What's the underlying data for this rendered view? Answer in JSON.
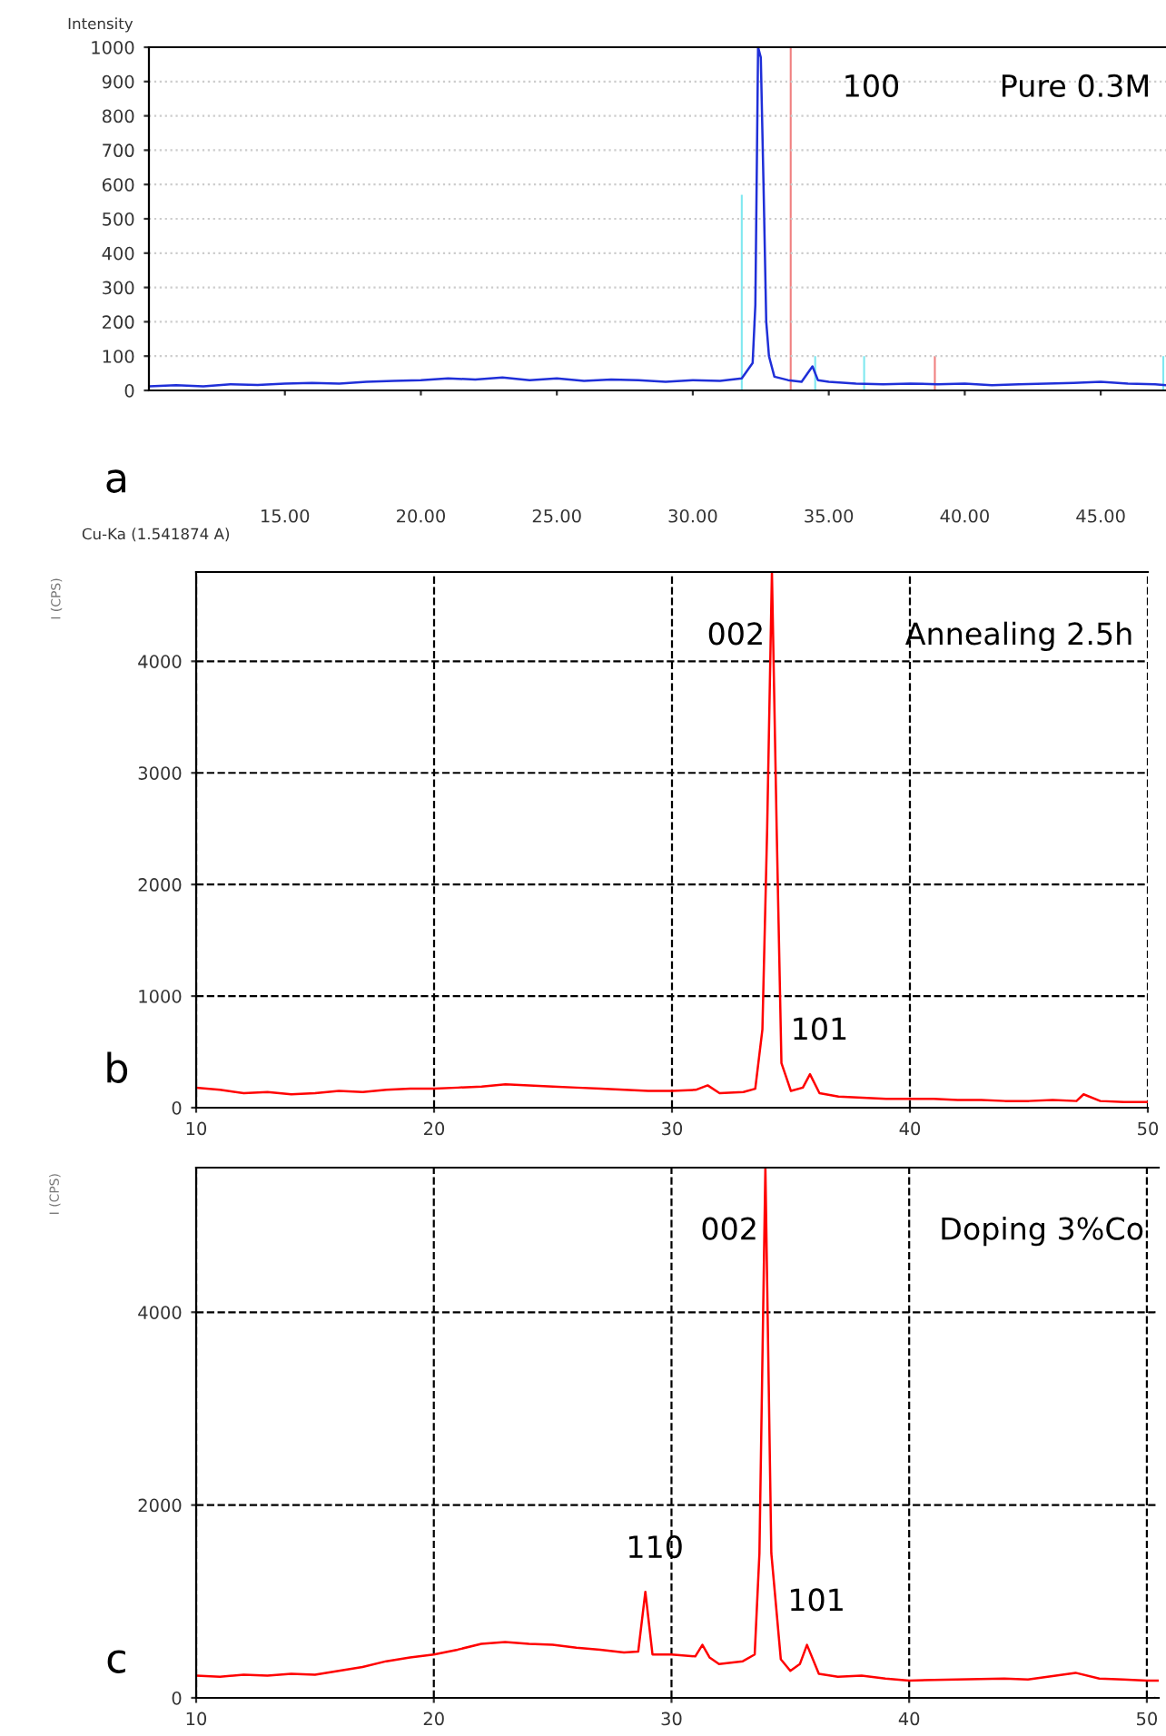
{
  "chart_data": [
    {
      "type": "line",
      "ylabel": "Intensity",
      "xlabel": "Cu-Ka (1.541874 A)",
      "annotations": [
        "Pure 0.3M",
        "a",
        {
          "text": "100",
          "x": 32.5,
          "y": 1000
        }
      ],
      "xlim": [
        10,
        47.4
      ],
      "ylim": [
        0,
        1000
      ],
      "xticks": [
        {
          "value": 15,
          "label": "15.00"
        },
        {
          "value": 20,
          "label": "20.00"
        },
        {
          "value": 25,
          "label": "25.00"
        },
        {
          "value": 30,
          "label": "30.00"
        },
        {
          "value": 35,
          "label": "35.00"
        },
        {
          "value": 40,
          "label": "40.00"
        },
        {
          "value": 45,
          "label": "45.00"
        }
      ],
      "yticks": [
        0,
        100,
        200,
        300,
        400,
        500,
        600,
        700,
        800,
        900,
        1000
      ],
      "grid": "y",
      "series": [
        {
          "color": "#1f2fd8",
          "x": [
            10,
            11,
            12,
            13,
            14,
            15,
            16,
            17,
            18,
            19,
            20,
            21,
            22,
            23,
            24,
            25,
            26,
            27,
            28,
            29,
            30,
            31,
            31.8,
            32.2,
            32.3,
            32.4,
            32.5,
            32.6,
            32.7,
            32.8,
            33.0,
            33.5,
            34.0,
            34.4,
            34.6,
            35,
            36,
            37,
            38,
            39,
            40,
            41,
            42,
            43,
            44,
            45,
            46,
            47,
            47.4
          ],
          "values": [
            12,
            15,
            12,
            18,
            16,
            20,
            22,
            20,
            25,
            28,
            30,
            35,
            32,
            38,
            30,
            35,
            28,
            32,
            30,
            25,
            30,
            28,
            35,
            80,
            250,
            1000,
            970,
            600,
            200,
            100,
            40,
            30,
            25,
            70,
            30,
            25,
            20,
            18,
            20,
            18,
            20,
            15,
            18,
            20,
            22,
            25,
            20,
            18,
            15
          ]
        },
        {
          "type": "bar",
          "x": [
            31.8,
            33.6,
            34.5,
            36.3,
            38.9,
            47.3
          ],
          "values": [
            570,
            1000,
            100,
            100,
            100,
            100
          ],
          "colors": [
            "#7fe8f0",
            "#f08080",
            "#7fe8f0",
            "#7fe8f0",
            "#f08080",
            "#7fe8f0"
          ]
        }
      ]
    },
    {
      "type": "line",
      "ylabel": "I (CPS)",
      "annotations": [
        "Annealing 2.5h",
        "b",
        {
          "text": "002",
          "x": 34.2,
          "y": 4800
        },
        {
          "text": "101",
          "x": 35.8,
          "y": 300
        }
      ],
      "xlim": [
        10,
        50
      ],
      "ylim": [
        0,
        4800
      ],
      "xticks": [
        10,
        20,
        30,
        40,
        50
      ],
      "yticks": [
        0,
        1000,
        2000,
        3000,
        4000
      ],
      "grid": true,
      "series": [
        {
          "color": "#ff0000",
          "x": [
            10,
            11,
            12,
            13,
            14,
            15,
            16,
            17,
            18,
            19,
            20,
            21,
            22,
            23,
            24,
            25,
            26,
            27,
            28,
            29,
            30,
            31,
            31.5,
            32,
            33,
            33.5,
            33.8,
            34.0,
            34.2,
            34.4,
            34.6,
            35,
            35.5,
            35.8,
            36.2,
            37,
            38,
            39,
            40,
            41,
            42,
            43,
            44,
            45,
            46,
            47,
            47.3,
            48,
            49,
            50
          ],
          "values": [
            180,
            160,
            130,
            140,
            120,
            130,
            150,
            140,
            160,
            170,
            170,
            180,
            190,
            210,
            200,
            190,
            180,
            170,
            160,
            150,
            150,
            160,
            200,
            130,
            140,
            170,
            700,
            2500,
            4800,
            2500,
            400,
            150,
            180,
            300,
            130,
            100,
            90,
            80,
            80,
            80,
            70,
            70,
            60,
            60,
            70,
            60,
            120,
            60,
            50,
            50
          ]
        }
      ]
    },
    {
      "type": "line",
      "ylabel": "I (CPS)",
      "annotations": [
        "Doping 3%Co",
        "c",
        {
          "text": "002",
          "x": 33.95,
          "y": 5500
        },
        {
          "text": "110",
          "x": 28.9,
          "y": 1100
        },
        {
          "text": "101",
          "x": 35.7,
          "y": 550
        }
      ],
      "xlim": [
        10,
        50.5
      ],
      "ylim": [
        0,
        5500
      ],
      "xticks": [
        10,
        20,
        30,
        40,
        50
      ],
      "yticks": [
        0,
        2000,
        4000
      ],
      "grid": true,
      "series": [
        {
          "color": "#ff0000",
          "x": [
            10,
            11,
            12,
            13,
            14,
            15,
            16,
            17,
            18,
            19,
            20,
            21,
            22,
            23,
            24,
            25,
            26,
            27,
            28,
            28.6,
            28.9,
            29.2,
            30,
            31,
            31.3,
            31.6,
            32,
            33,
            33.5,
            33.7,
            33.95,
            34.2,
            34.6,
            35,
            35.4,
            35.7,
            36.2,
            37,
            38,
            39,
            40,
            42,
            44,
            45,
            47,
            48,
            49,
            50,
            50.5
          ],
          "values": [
            230,
            220,
            240,
            230,
            250,
            240,
            280,
            320,
            380,
            420,
            450,
            500,
            560,
            580,
            560,
            550,
            520,
            500,
            470,
            480,
            1100,
            450,
            450,
            430,
            550,
            420,
            350,
            380,
            450,
            1500,
            5500,
            1500,
            400,
            280,
            350,
            550,
            250,
            220,
            230,
            200,
            180,
            190,
            200,
            190,
            260,
            200,
            190,
            180,
            180
          ]
        }
      ]
    }
  ]
}
